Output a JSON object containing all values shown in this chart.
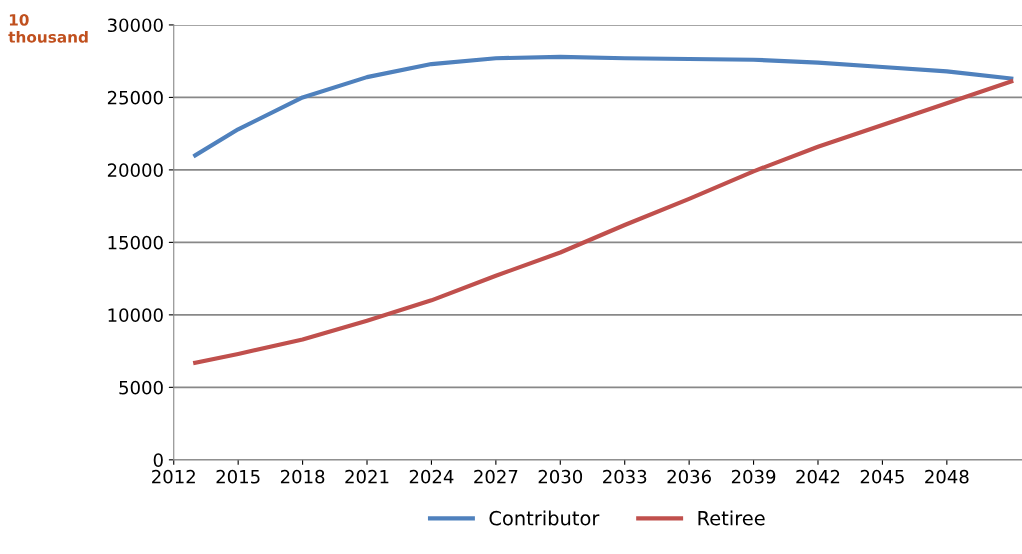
{
  "chart_data": {
    "type": "line",
    "ylabel": "10\nthousand",
    "x": [
      2013,
      2015,
      2018,
      2021,
      2024,
      2027,
      2030,
      2033,
      2036,
      2039,
      2042,
      2045,
      2048,
      2051
    ],
    "series": [
      {
        "name": "Contributor",
        "color": "#4f81bd",
        "values": [
          21000,
          22800,
          25000,
          26400,
          27300,
          27700,
          27800,
          27700,
          27650,
          27600,
          27400,
          27100,
          26800,
          26300
        ]
      },
      {
        "name": "Retiree",
        "color": "#c0504d",
        "values": [
          6700,
          7300,
          8300,
          9600,
          11000,
          12700,
          14300,
          16200,
          18000,
          19900,
          21600,
          23100,
          24600,
          26100
        ]
      }
    ],
    "xlim": [
      2012,
      2051.5
    ],
    "xticks": [
      2012,
      2015,
      2018,
      2021,
      2024,
      2027,
      2030,
      2033,
      2036,
      2039,
      2042,
      2045,
      2048
    ],
    "ylim": [
      0,
      30000
    ],
    "yticks": [
      0,
      5000,
      10000,
      15000,
      20000,
      25000,
      30000
    ],
    "grid": "y",
    "legend": "bottom",
    "marker": "none",
    "line_style": "solid"
  }
}
